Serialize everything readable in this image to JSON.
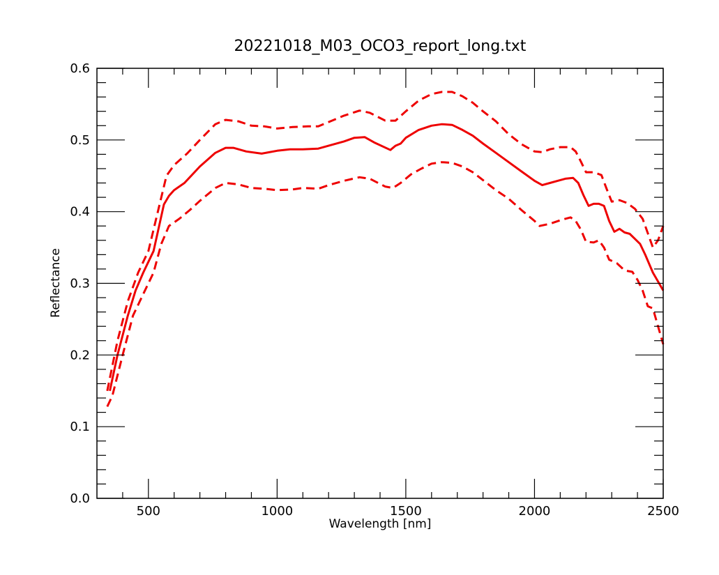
{
  "chart_data": {
    "type": "line",
    "title": "20221018_M03_OCO3_report_long.txt",
    "xlabel": "Wavelength [nm]",
    "ylabel": "Reflectance",
    "xlim": [
      300,
      2500
    ],
    "ylim": [
      0.0,
      0.6
    ],
    "grid": false,
    "x_ticks": [
      500,
      1000,
      1500,
      2000,
      2500
    ],
    "x_tick_labels": [
      "500",
      "1000",
      "1500",
      "2000",
      "2500"
    ],
    "y_ticks": [
      0.0,
      0.1,
      0.2,
      0.3,
      0.4,
      0.5,
      0.6
    ],
    "y_tick_labels": [
      "0.0",
      "0.1",
      "0.2",
      "0.3",
      "0.4",
      "0.5",
      "0.6"
    ],
    "series": [
      {
        "style": "solid",
        "color": "#ee0000",
        "points": [
          [
            350,
            0.15
          ],
          [
            380,
            0.2
          ],
          [
            420,
            0.255
          ],
          [
            450,
            0.29
          ],
          [
            480,
            0.315
          ],
          [
            520,
            0.345
          ],
          [
            560,
            0.41
          ],
          [
            580,
            0.422
          ],
          [
            600,
            0.43
          ],
          [
            640,
            0.44
          ],
          [
            700,
            0.463
          ],
          [
            760,
            0.482
          ],
          [
            800,
            0.489
          ],
          [
            830,
            0.489
          ],
          [
            880,
            0.484
          ],
          [
            940,
            0.481
          ],
          [
            1000,
            0.485
          ],
          [
            1050,
            0.487
          ],
          [
            1100,
            0.487
          ],
          [
            1160,
            0.488
          ],
          [
            1200,
            0.492
          ],
          [
            1260,
            0.498
          ],
          [
            1300,
            0.503
          ],
          [
            1340,
            0.504
          ],
          [
            1380,
            0.496
          ],
          [
            1440,
            0.486
          ],
          [
            1460,
            0.492
          ],
          [
            1480,
            0.495
          ],
          [
            1500,
            0.503
          ],
          [
            1550,
            0.514
          ],
          [
            1600,
            0.52
          ],
          [
            1640,
            0.522
          ],
          [
            1680,
            0.521
          ],
          [
            1720,
            0.514
          ],
          [
            1760,
            0.506
          ],
          [
            1800,
            0.495
          ],
          [
            1850,
            0.482
          ],
          [
            1900,
            0.469
          ],
          [
            1950,
            0.456
          ],
          [
            2000,
            0.443
          ],
          [
            2030,
            0.437
          ],
          [
            2060,
            0.44
          ],
          [
            2090,
            0.443
          ],
          [
            2120,
            0.446
          ],
          [
            2150,
            0.447
          ],
          [
            2170,
            0.44
          ],
          [
            2190,
            0.423
          ],
          [
            2210,
            0.408
          ],
          [
            2230,
            0.411
          ],
          [
            2250,
            0.411
          ],
          [
            2270,
            0.408
          ],
          [
            2290,
            0.387
          ],
          [
            2310,
            0.372
          ],
          [
            2330,
            0.376
          ],
          [
            2350,
            0.371
          ],
          [
            2370,
            0.369
          ],
          [
            2390,
            0.362
          ],
          [
            2410,
            0.355
          ],
          [
            2430,
            0.34
          ],
          [
            2460,
            0.315
          ],
          [
            2500,
            0.29
          ]
        ]
      },
      {
        "style": "dashed",
        "color": "#ee0000",
        "points": [
          [
            340,
            0.15
          ],
          [
            380,
            0.22
          ],
          [
            420,
            0.275
          ],
          [
            460,
            0.315
          ],
          [
            500,
            0.345
          ],
          [
            540,
            0.405
          ],
          [
            570,
            0.45
          ],
          [
            600,
            0.465
          ],
          [
            650,
            0.481
          ],
          [
            700,
            0.5
          ],
          [
            760,
            0.522
          ],
          [
            800,
            0.528
          ],
          [
            850,
            0.526
          ],
          [
            900,
            0.52
          ],
          [
            950,
            0.519
          ],
          [
            1000,
            0.516
          ],
          [
            1060,
            0.518
          ],
          [
            1120,
            0.519
          ],
          [
            1160,
            0.519
          ],
          [
            1200,
            0.525
          ],
          [
            1260,
            0.534
          ],
          [
            1320,
            0.541
          ],
          [
            1360,
            0.538
          ],
          [
            1420,
            0.527
          ],
          [
            1460,
            0.527
          ],
          [
            1500,
            0.54
          ],
          [
            1550,
            0.555
          ],
          [
            1600,
            0.564
          ],
          [
            1640,
            0.567
          ],
          [
            1680,
            0.567
          ],
          [
            1720,
            0.561
          ],
          [
            1760,
            0.552
          ],
          [
            1800,
            0.54
          ],
          [
            1850,
            0.526
          ],
          [
            1900,
            0.508
          ],
          [
            1950,
            0.494
          ],
          [
            2000,
            0.484
          ],
          [
            2030,
            0.483
          ],
          [
            2060,
            0.487
          ],
          [
            2100,
            0.49
          ],
          [
            2140,
            0.49
          ],
          [
            2160,
            0.484
          ],
          [
            2180,
            0.47
          ],
          [
            2200,
            0.455
          ],
          [
            2230,
            0.455
          ],
          [
            2260,
            0.451
          ],
          [
            2280,
            0.432
          ],
          [
            2300,
            0.414
          ],
          [
            2330,
            0.416
          ],
          [
            2360,
            0.412
          ],
          [
            2390,
            0.404
          ],
          [
            2420,
            0.39
          ],
          [
            2440,
            0.37
          ],
          [
            2460,
            0.35
          ],
          [
            2480,
            0.36
          ],
          [
            2500,
            0.38
          ]
        ]
      },
      {
        "style": "dashed",
        "color": "#ee0000",
        "points": [
          [
            340,
            0.128
          ],
          [
            360,
            0.143
          ],
          [
            400,
            0.2
          ],
          [
            440,
            0.255
          ],
          [
            480,
            0.285
          ],
          [
            520,
            0.315
          ],
          [
            550,
            0.355
          ],
          [
            580,
            0.38
          ],
          [
            620,
            0.39
          ],
          [
            660,
            0.402
          ],
          [
            700,
            0.415
          ],
          [
            760,
            0.433
          ],
          [
            800,
            0.44
          ],
          [
            850,
            0.438
          ],
          [
            900,
            0.433
          ],
          [
            950,
            0.432
          ],
          [
            1000,
            0.43
          ],
          [
            1060,
            0.431
          ],
          [
            1100,
            0.433
          ],
          [
            1160,
            0.432
          ],
          [
            1200,
            0.437
          ],
          [
            1260,
            0.443
          ],
          [
            1320,
            0.448
          ],
          [
            1360,
            0.446
          ],
          [
            1420,
            0.435
          ],
          [
            1450,
            0.433
          ],
          [
            1480,
            0.44
          ],
          [
            1520,
            0.452
          ],
          [
            1560,
            0.46
          ],
          [
            1600,
            0.467
          ],
          [
            1640,
            0.469
          ],
          [
            1680,
            0.468
          ],
          [
            1720,
            0.463
          ],
          [
            1760,
            0.455
          ],
          [
            1800,
            0.444
          ],
          [
            1850,
            0.43
          ],
          [
            1900,
            0.418
          ],
          [
            1950,
            0.402
          ],
          [
            2000,
            0.387
          ],
          [
            2020,
            0.38
          ],
          [
            2060,
            0.383
          ],
          [
            2100,
            0.388
          ],
          [
            2140,
            0.392
          ],
          [
            2160,
            0.387
          ],
          [
            2180,
            0.375
          ],
          [
            2200,
            0.358
          ],
          [
            2230,
            0.357
          ],
          [
            2250,
            0.36
          ],
          [
            2270,
            0.35
          ],
          [
            2290,
            0.333
          ],
          [
            2320,
            0.328
          ],
          [
            2350,
            0.318
          ],
          [
            2380,
            0.316
          ],
          [
            2400,
            0.305
          ],
          [
            2420,
            0.29
          ],
          [
            2440,
            0.268
          ],
          [
            2460,
            0.265
          ],
          [
            2480,
            0.24
          ],
          [
            2500,
            0.215
          ]
        ]
      }
    ]
  }
}
